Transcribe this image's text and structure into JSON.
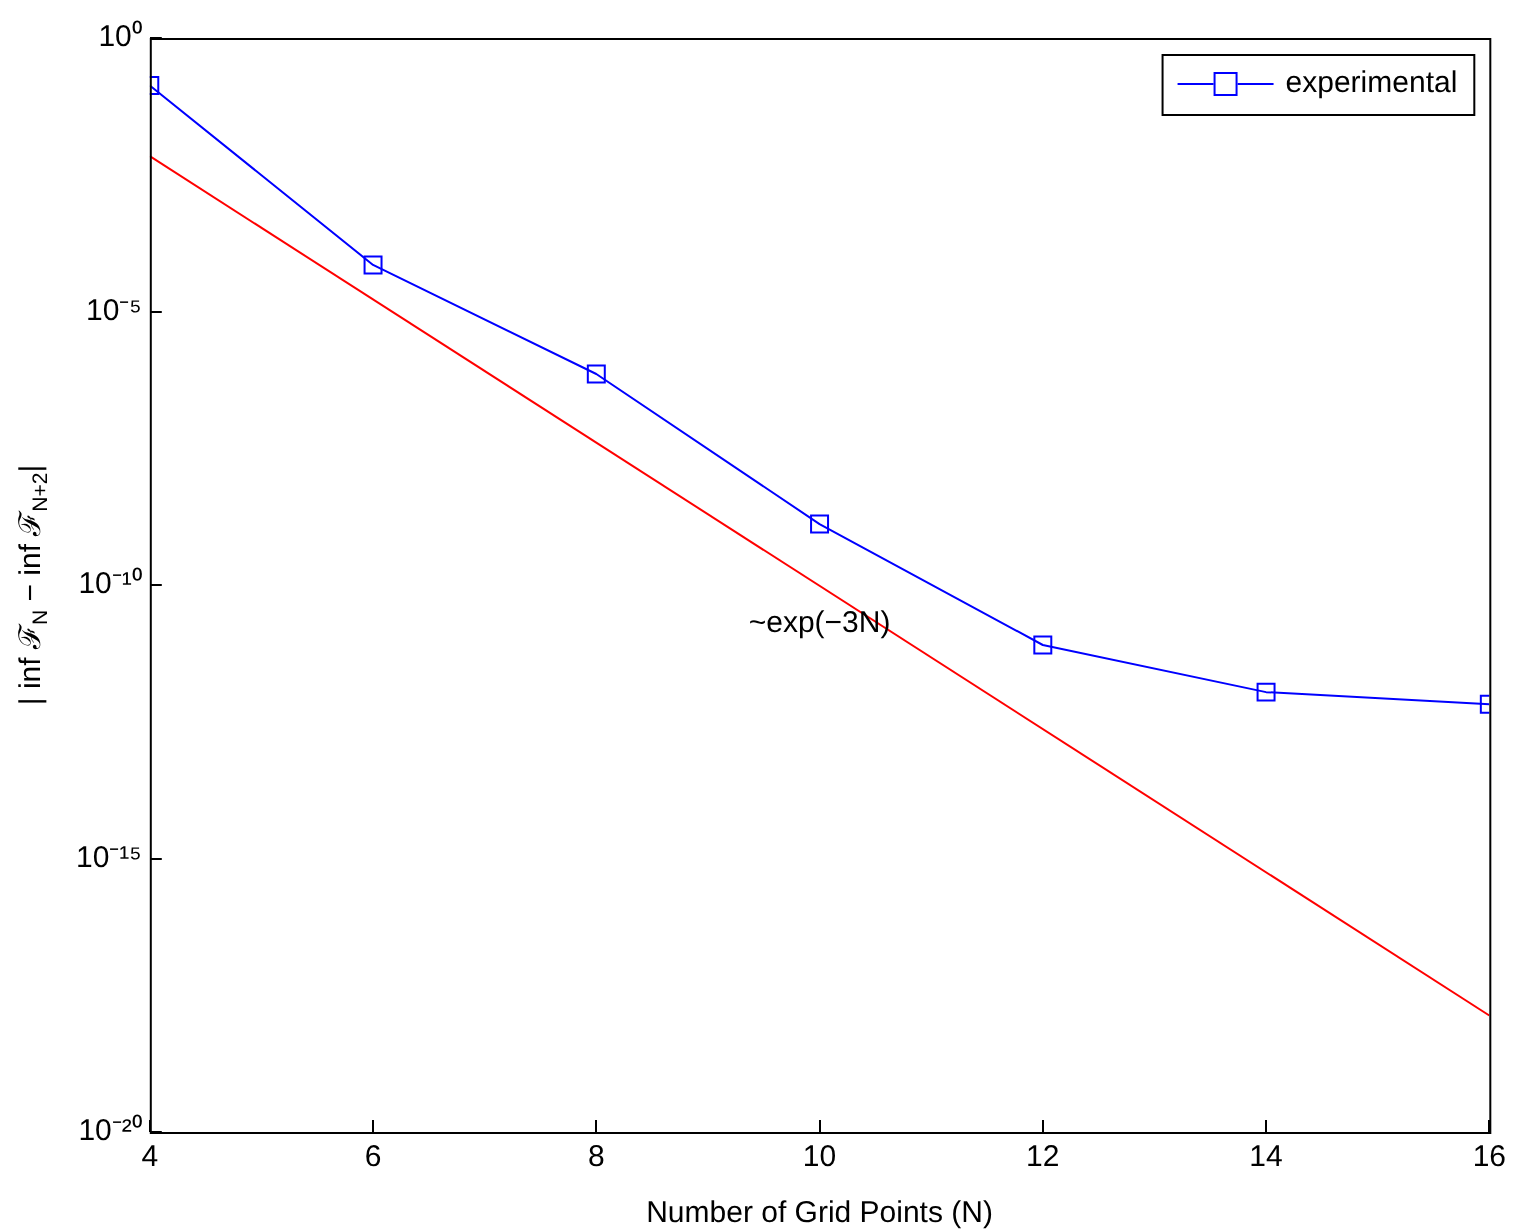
{
  "chart_data": {
    "type": "line",
    "xlabel": "Number of Grid Points (N)",
    "ylabel": "| inf ℱ$_{N}$ − inf ℱ$_{N+2}$|",
    "xlim": [
      4,
      16
    ],
    "xticks": [
      4,
      6,
      8,
      10,
      12,
      14,
      16
    ],
    "ylim": [
      1e-20,
      1
    ],
    "yticks": [
      {
        "value": 1e-20,
        "label": "10⁻²⁰"
      },
      {
        "value": 1e-15,
        "label": "10⁻¹⁵"
      },
      {
        "value": 1e-10,
        "label": "10⁻¹⁰"
      },
      {
        "value": 1e-05,
        "label": "10⁻⁵"
      },
      {
        "value": 1,
        "label": "10⁰"
      }
    ],
    "log": "y",
    "grid": false,
    "legend": "top right",
    "series": [
      {
        "name": "experimental",
        "color": "#0000ff",
        "marker": "square",
        "x": [
          4,
          6,
          8,
          10,
          12,
          14,
          16
        ],
        "values": [
          0.135,
          7.1e-05,
          7.2e-07,
          1.3e-09,
          8e-12,
          1.1e-12,
          6.6e-13
        ]
      },
      {
        "color": "#ff0000",
        "marker": "none",
        "x": [
          4,
          16
        ],
        "values": [
          0.0069,
          1.35e-18
        ]
      }
    ],
    "annotations": [
      "~exp(−3N)"
    ]
  }
}
